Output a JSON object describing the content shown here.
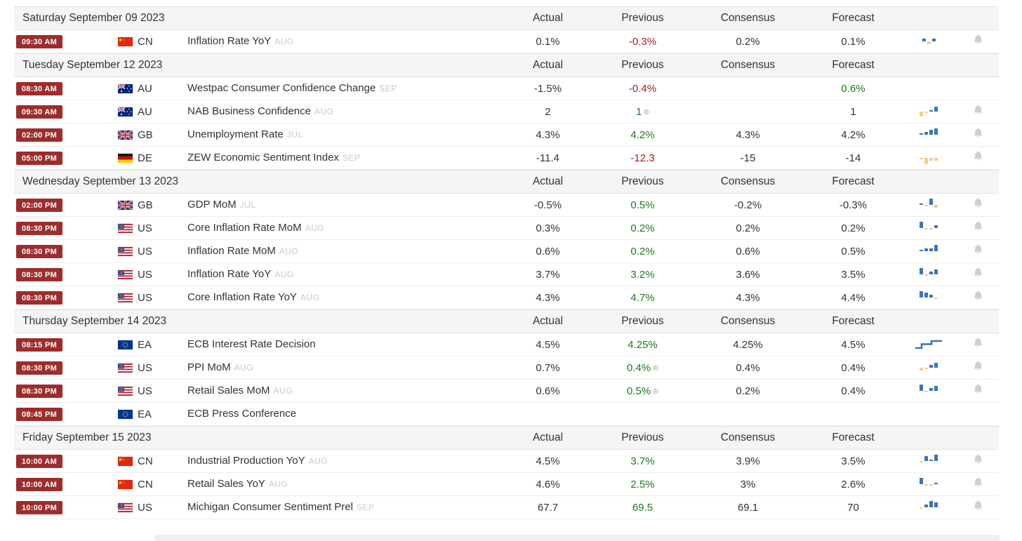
{
  "colors": {
    "time_badge": "#9d2c2c",
    "green": "#1b7a1b",
    "red": "#9e1c1c",
    "bar_positive": "#3c77b3",
    "bar_negative": "#f2cf96",
    "bell": "#cfcfcf",
    "section_bg": "#f5f5f5"
  },
  "columns": {
    "actual": "Actual",
    "previous": "Previous",
    "consensus": "Consensus",
    "forecast": "Forecast"
  },
  "sections": [
    {
      "date": "Saturday September 09 2023",
      "rows": [
        {
          "time": "09:30 AM",
          "country": "CN",
          "event": "Inflation Rate YoY",
          "period": "AUG",
          "actual": "0.1%",
          "previous": "-0.3%",
          "previous_color": "red",
          "revised": false,
          "consensus": "0.2%",
          "forecast": "0.1%",
          "forecast_color": null,
          "spark": {
            "type": "bars",
            "values": [
              2,
              -2,
              2
            ]
          },
          "bell": true
        }
      ]
    },
    {
      "date": "Tuesday September 12 2023",
      "rows": [
        {
          "time": "08:30 AM",
          "country": "AU",
          "event": "Westpac Consumer Confidence Change",
          "period": "SEP",
          "actual": "-1.5%",
          "previous": "-0.4%",
          "previous_color": "red",
          "revised": false,
          "consensus": "",
          "forecast": "0.6%",
          "forecast_color": "green",
          "spark": null,
          "bell": false
        },
        {
          "time": "09:30 AM",
          "country": "AU",
          "event": "NAB Business Confidence",
          "period": "AUG",
          "actual": "2",
          "previous": "1",
          "previous_color": "green",
          "revised": true,
          "consensus": "",
          "forecast": "1",
          "forecast_color": null,
          "spark": {
            "type": "bars",
            "values": [
              -3,
              -1,
              1,
              3
            ]
          },
          "bell": true
        },
        {
          "time": "02:00 PM",
          "country": "GB",
          "event": "Unemployment Rate",
          "period": "JUL",
          "actual": "4.3%",
          "previous": "4.2%",
          "previous_color": "green",
          "revised": false,
          "consensus": "4.3%",
          "forecast": "4.2%",
          "forecast_color": null,
          "spark": {
            "type": "bars",
            "values": [
              1,
              2,
              3,
              4
            ]
          },
          "bell": true
        },
        {
          "time": "05:00 PM",
          "country": "DE",
          "event": "ZEW Economic Sentiment Index",
          "period": "SEP",
          "actual": "-11.4",
          "previous": "-12.3",
          "previous_color": "red",
          "revised": false,
          "consensus": "-15",
          "forecast": "-14",
          "forecast_color": null,
          "spark": {
            "type": "bars",
            "values": [
              -1,
              -4,
              -2,
              -2
            ]
          },
          "bell": true
        }
      ]
    },
    {
      "date": "Wednesday September 13 2023",
      "rows": [
        {
          "time": "02:00 PM",
          "country": "GB",
          "event": "GDP MoM",
          "period": "JUL",
          "actual": "-0.5%",
          "previous": "0.5%",
          "previous_color": "green",
          "revised": false,
          "consensus": "-0.2%",
          "forecast": "-0.3%",
          "forecast_color": null,
          "spark": {
            "type": "bars",
            "values": [
              1,
              -1,
              4,
              -2
            ]
          },
          "bell": true
        },
        {
          "time": "08:30 PM",
          "country": "US",
          "event": "Core Inflation Rate MoM",
          "period": "AUG",
          "actual": "0.3%",
          "previous": "0.2%",
          "previous_color": "green",
          "revised": false,
          "consensus": "0.2%",
          "forecast": "0.2%",
          "forecast_color": null,
          "spark": {
            "type": "bars",
            "values": [
              4,
              -1,
              -1,
              2
            ]
          },
          "bell": true
        },
        {
          "time": "08:30 PM",
          "country": "US",
          "event": "Inflation Rate MoM",
          "period": "AUG",
          "actual": "0.6%",
          "previous": "0.2%",
          "previous_color": "green",
          "revised": false,
          "consensus": "0.6%",
          "forecast": "0.5%",
          "forecast_color": null,
          "spark": {
            "type": "bars",
            "values": [
              1,
              2,
              2,
              4
            ]
          },
          "bell": true
        },
        {
          "time": "08:30 PM",
          "country": "US",
          "event": "Inflation Rate YoY",
          "period": "AUG",
          "actual": "3.7%",
          "previous": "3.2%",
          "previous_color": "green",
          "revised": false,
          "consensus": "3.6%",
          "forecast": "3.5%",
          "forecast_color": null,
          "spark": {
            "type": "bars",
            "values": [
              4,
              -1,
              2,
              3
            ]
          },
          "bell": true
        },
        {
          "time": "08:30 PM",
          "country": "US",
          "event": "Core Inflation Rate YoY",
          "period": "AUG",
          "actual": "4.3%",
          "previous": "4.7%",
          "previous_color": "green",
          "revised": false,
          "consensus": "4.3%",
          "forecast": "4.4%",
          "forecast_color": null,
          "spark": {
            "type": "bars",
            "values": [
              4,
              3,
              2,
              -1
            ]
          },
          "bell": true
        }
      ]
    },
    {
      "date": "Thursday September 14 2023",
      "rows": [
        {
          "time": "08:15 PM",
          "country": "EA",
          "event": "ECB Interest Rate Decision",
          "period": "",
          "actual": "4.5%",
          "previous": "4.25%",
          "previous_color": "green",
          "revised": false,
          "consensus": "4.25%",
          "forecast": "4.5%",
          "forecast_color": null,
          "spark": {
            "type": "line"
          },
          "bell": true
        },
        {
          "time": "08:30 PM",
          "country": "US",
          "event": "PPI MoM",
          "period": "AUG",
          "actual": "0.7%",
          "previous": "0.4%",
          "previous_color": "green",
          "revised": true,
          "consensus": "0.4%",
          "forecast": "0.4%",
          "forecast_color": null,
          "spark": {
            "type": "bars",
            "values": [
              -2,
              -1,
              2,
              3
            ]
          },
          "bell": true
        },
        {
          "time": "08:30 PM",
          "country": "US",
          "event": "Retail Sales MoM",
          "period": "AUG",
          "actual": "0.6%",
          "previous": "0.5%",
          "previous_color": "green",
          "revised": true,
          "consensus": "0.2%",
          "forecast": "0.4%",
          "forecast_color": null,
          "spark": {
            "type": "bars",
            "values": [
              4,
              -1,
              2,
              3
            ]
          },
          "bell": true
        },
        {
          "time": "08:45 PM",
          "country": "EA",
          "event": "ECB Press Conference",
          "period": "",
          "actual": "",
          "previous": "",
          "previous_color": null,
          "revised": false,
          "consensus": "",
          "forecast": "",
          "forecast_color": null,
          "spark": null,
          "bell": false
        }
      ]
    },
    {
      "date": "Friday September 15 2023",
      "rows": [
        {
          "time": "10:00 AM",
          "country": "CN",
          "event": "Industrial Production YoY",
          "period": "AUG",
          "actual": "4.5%",
          "previous": "3.7%",
          "previous_color": "green",
          "revised": false,
          "consensus": "3.9%",
          "forecast": "3.5%",
          "forecast_color": null,
          "spark": {
            "type": "bars",
            "values": [
              -1,
              3,
              1,
              4
            ]
          },
          "bell": true
        },
        {
          "time": "10:00 AM",
          "country": "CN",
          "event": "Retail Sales YoY",
          "period": "AUG",
          "actual": "4.6%",
          "previous": "2.5%",
          "previous_color": "green",
          "revised": false,
          "consensus": "3%",
          "forecast": "2.6%",
          "forecast_color": null,
          "spark": {
            "type": "bars",
            "values": [
              4,
              -1,
              -1,
              1
            ]
          },
          "bell": true
        },
        {
          "time": "10:00 PM",
          "country": "US",
          "event": "Michigan Consumer Sentiment Prel",
          "period": "SEP",
          "actual": "67.7",
          "previous": "69.5",
          "previous_color": "green",
          "revised": false,
          "consensus": "69.1",
          "forecast": "70",
          "forecast_color": null,
          "spark": {
            "type": "bars",
            "values": [
              -1,
              2,
              4,
              3
            ]
          },
          "bell": true
        }
      ]
    }
  ],
  "revised_symbol": "®"
}
